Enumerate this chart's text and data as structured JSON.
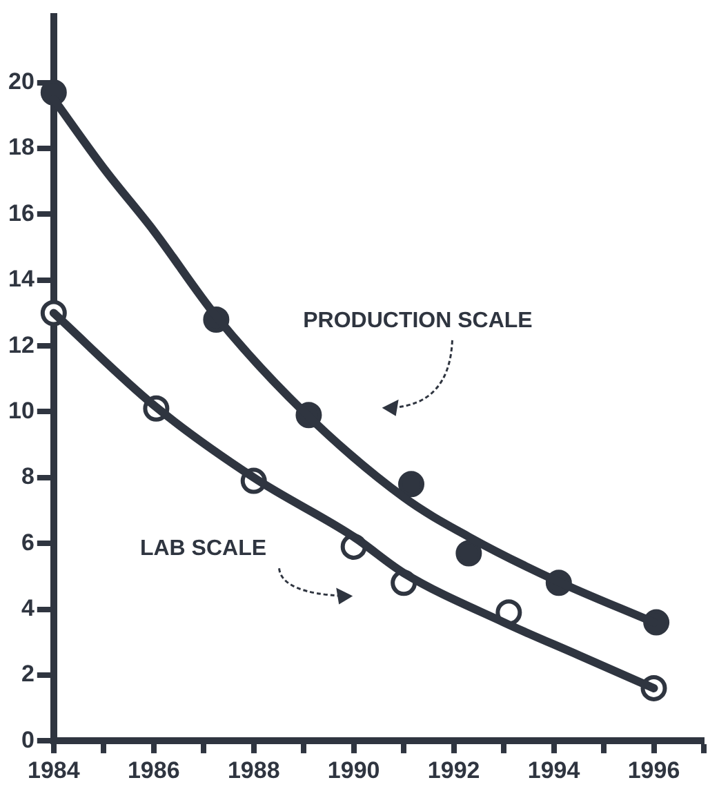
{
  "chart_data": {
    "type": "scatter",
    "series": [
      {
        "type": "line",
        "color": "#2f3540",
        "marker": "none",
        "line_style": "solid",
        "x": [
          1984,
          1985,
          1986,
          1987.25,
          1989,
          1991,
          1992.3,
          1994,
          1996
        ],
        "values": [
          19.5,
          17.4,
          15.5,
          12.9,
          10,
          7.4,
          6.2,
          4.9,
          3.6
        ]
      },
      {
        "type": "line",
        "color": "#2f3540",
        "marker": "none",
        "line_style": "solid",
        "x": [
          1984,
          1986,
          1988,
          1990,
          1991,
          1993,
          1994.5,
          1996
        ],
        "values": [
          13,
          10.2,
          8,
          6.2,
          5.1,
          3.6,
          2.6,
          1.6
        ]
      },
      {
        "color": "#2f3540",
        "marker": "circle",
        "x": [
          1984,
          1987.25,
          1989.1,
          1991.15,
          1992.3,
          1994.1,
          1996.05
        ],
        "values": [
          19.7,
          12.8,
          9.9,
          7.8,
          5.7,
          4.8,
          3.6
        ]
      },
      {
        "color": "#ffffff",
        "marker": "circle",
        "x": [
          1984,
          1986.05,
          1988,
          1990,
          1991,
          1993.1,
          1996
        ],
        "values": [
          13,
          10.1,
          7.9,
          5.9,
          4.8,
          3.9,
          1.6
        ]
      }
    ],
    "annotations": [
      "PRODUCTION SCALE",
      "LAB SCALE"
    ],
    "xlim": [
      1984,
      1997
    ],
    "xticks": [
      1984,
      {
        "value": 1985,
        "label": null
      },
      1986,
      {
        "value": 1987,
        "label": null
      },
      1988,
      {
        "value": 1989,
        "label": null
      },
      1990,
      {
        "value": 1991,
        "label": null
      },
      1992,
      {
        "value": 1993,
        "label": null
      },
      1994,
      {
        "value": 1995,
        "label": null
      },
      1996,
      {
        "value": 1997,
        "label": null
      }
    ],
    "ylim": [
      0,
      22
    ],
    "yticks": [
      0,
      2,
      4,
      6,
      8,
      10,
      12,
      14,
      16,
      18,
      20
    ],
    "grid": false,
    "legend": false
  }
}
